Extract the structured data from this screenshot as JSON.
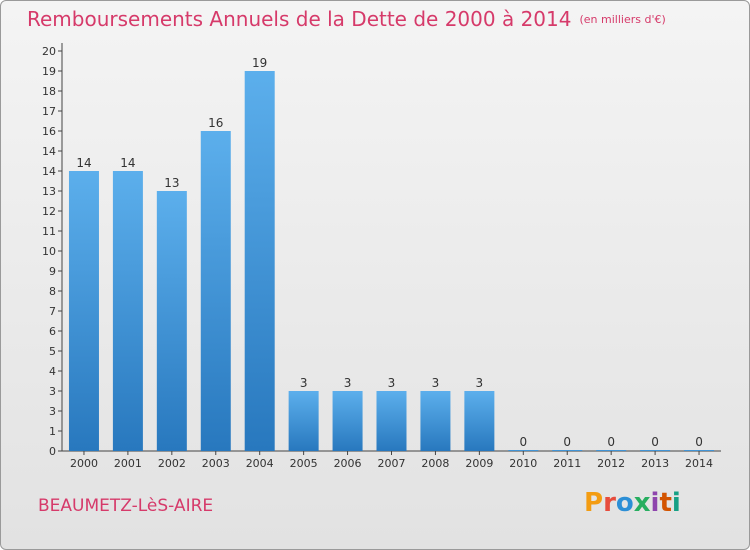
{
  "header": {
    "title": "Remboursements Annuels de la Dette de 2000 à 2014",
    "subtitle": "(en milliers d'€)"
  },
  "footer": {
    "commune": "BEAUMETZ-LèS-AIRE",
    "logo_text": "Proxiti"
  },
  "colors": {
    "title": "#d63a6a",
    "bar_top": "#5cafec",
    "bar_bottom": "#2878be",
    "logo_letters": [
      "#f39c12",
      "#e74c3c",
      "#2c8fd6",
      "#27ae60",
      "#8e44ad",
      "#d35400",
      "#16a085"
    ]
  },
  "chart_data": {
    "type": "bar",
    "title": "Remboursements Annuels de la Dette de 2000 à 2014",
    "subtitle": "(en milliers d'€)",
    "categories": [
      "2000",
      "2001",
      "2002",
      "2003",
      "2004",
      "2005",
      "2006",
      "2007",
      "2008",
      "2009",
      "2010",
      "2011",
      "2012",
      "2013",
      "2014"
    ],
    "values": [
      14,
      14,
      13,
      16,
      19,
      3,
      3,
      3,
      3,
      3,
      0,
      0,
      0,
      0,
      0
    ],
    "data_labels": [
      "14",
      "14",
      "13",
      "16",
      "19",
      "3",
      "3",
      "3",
      "3",
      "3",
      "0",
      "0",
      "0",
      "0",
      "0"
    ],
    "y_tick_labels": [
      "0",
      "1",
      "3",
      "3",
      "4",
      "5",
      "6",
      "7",
      "8",
      "9",
      "10",
      "11",
      "12",
      "13",
      "14",
      "14",
      "16",
      "17",
      "18",
      "19",
      "20"
    ],
    "ylim": [
      0,
      20
    ],
    "xlabel": "",
    "ylabel": "",
    "grid": false,
    "legend": "none"
  }
}
